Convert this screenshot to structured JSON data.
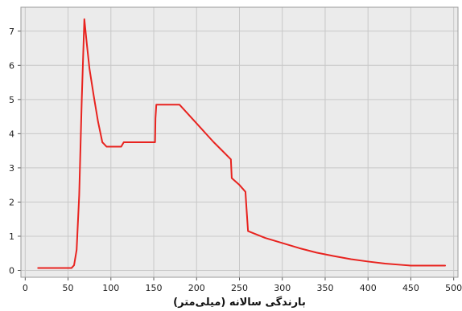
{
  "chart_data": {
    "type": "line",
    "title": "",
    "xlabel": "بارندگی سالانه (میلی‌متر)",
    "ylabel": "",
    "xlim": [
      -5,
      505
    ],
    "ylim": [
      -0.2,
      7.7
    ],
    "xticks": [
      0,
      50,
      100,
      150,
      200,
      250,
      300,
      350,
      400,
      450,
      500
    ],
    "yticks": [
      0,
      1,
      2,
      3,
      4,
      5,
      6,
      7
    ],
    "grid": true,
    "legend": "none",
    "colors": {
      "line": "#e8231f",
      "grid": "#c8c8c8",
      "background": "#ebebeb",
      "frame": "#9a9a9a"
    },
    "series": [
      {
        "x": [
          15,
          54,
          57,
          60,
          63,
          66,
          69,
          72,
          75,
          80,
          85,
          90,
          95,
          98,
          100,
          112,
          115,
          115.5,
          130,
          150,
          151.5,
          152,
          153,
          160,
          170,
          180,
          200,
          220,
          230,
          240,
          241,
          250,
          257,
          258,
          260,
          280,
          300,
          320,
          340,
          360,
          380,
          400,
          420,
          440,
          450,
          470,
          490
        ],
        "y": [
          0.07,
          0.07,
          0.15,
          0.6,
          2.2,
          5.0,
          7.35,
          6.6,
          5.9,
          5.1,
          4.35,
          3.75,
          3.62,
          3.62,
          3.62,
          3.62,
          3.75,
          3.75,
          3.75,
          3.75,
          3.75,
          4.45,
          4.85,
          4.85,
          4.85,
          4.85,
          4.3,
          3.75,
          3.5,
          3.25,
          2.7,
          2.5,
          2.3,
          1.9,
          1.15,
          0.95,
          0.8,
          0.65,
          0.52,
          0.42,
          0.33,
          0.26,
          0.2,
          0.16,
          0.14,
          0.14,
          0.14
        ]
      }
    ]
  }
}
